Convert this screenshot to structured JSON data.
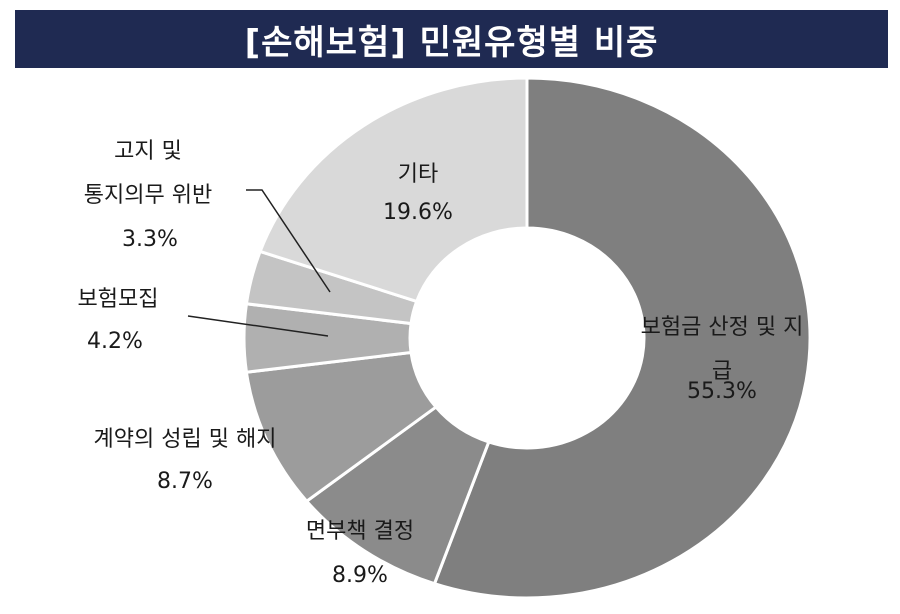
{
  "chart_data": {
    "type": "donut",
    "title": "[손해보험] 민원유형별 비중",
    "categories": [
      "보험금 산정 및 지급",
      "면부책 결정",
      "계약의 성립 및 해지",
      "보험모집",
      "고지 및\n통지의무 위반",
      "기타"
    ],
    "values": [
      55.3,
      8.9,
      8.7,
      4.2,
      3.3,
      19.6
    ],
    "value_labels": [
      "55.3%",
      "8.9%",
      "8.7%",
      "4.2%",
      "3.3%",
      "19.6%"
    ],
    "colors": [
      "#7f7f7f",
      "#8b8b8b",
      "#9c9c9c",
      "#b0b0b0",
      "#c4c4c4",
      "#d9d9d9"
    ]
  }
}
